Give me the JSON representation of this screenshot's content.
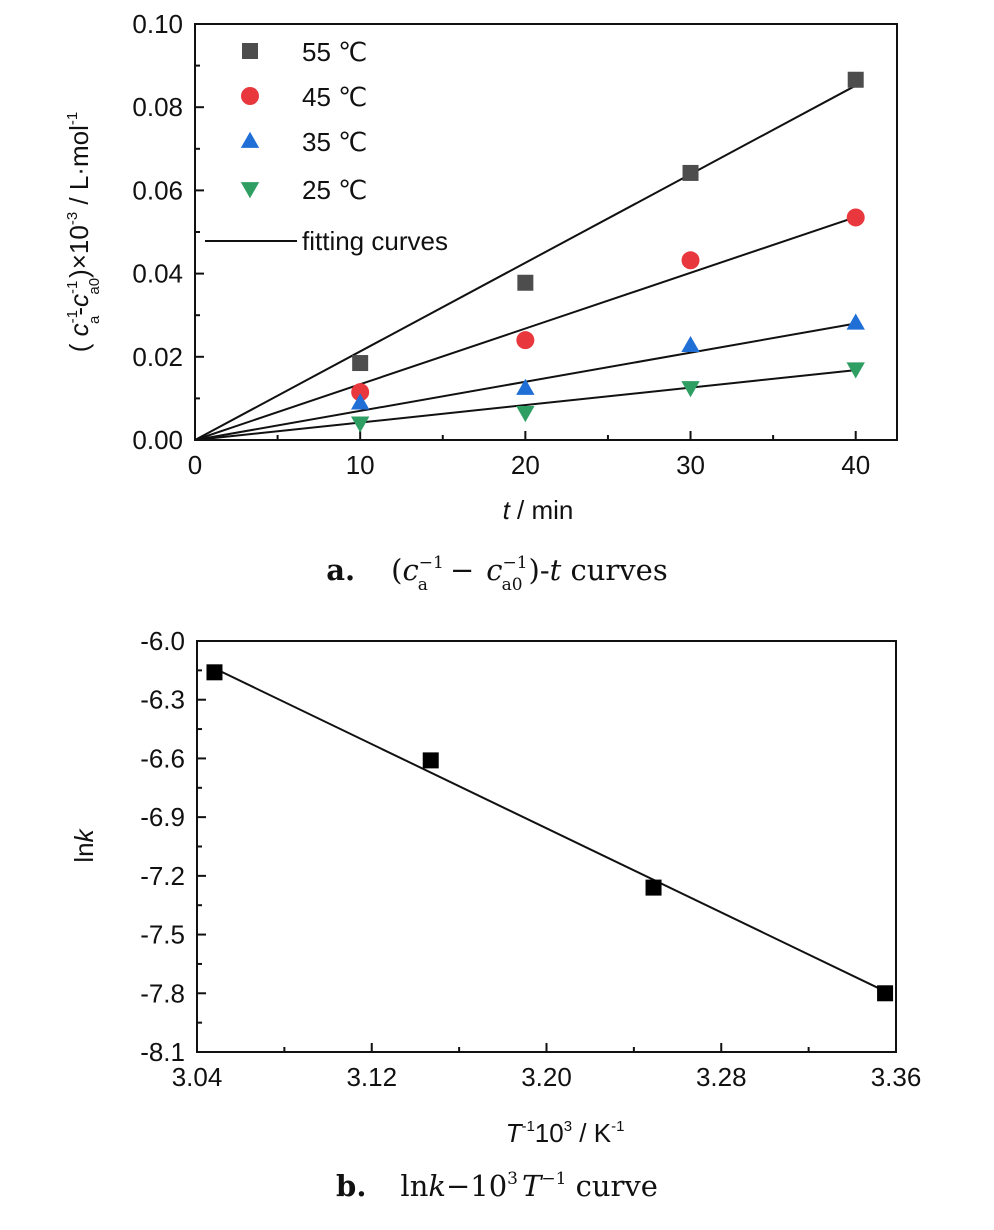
{
  "chart_data": [
    {
      "type": "scatter",
      "panel": "a",
      "caption": {
        "label": "a.",
        "text_open": "(",
        "c1": "c",
        "sub1": "a",
        "sup1": "−1",
        "minus": "−",
        "c2": "c",
        "sub2": "a0",
        "sup2": "−1",
        "text_close": ")-",
        "t": "t",
        "tail": " curves"
      },
      "xlabel": {
        "var": "t",
        "unit": " / min"
      },
      "ylabel": {
        "open": "( ",
        "c1": "c",
        "sub1": "a",
        "sup1": "-1",
        "dash": "-",
        "c2": "c",
        "sub2": "a0",
        "sup2": "-1",
        "mid": ")×10",
        "sup3": "-3",
        "unit": " / L·mol",
        "sup4": "-1"
      },
      "xlim": [
        0,
        42.5
      ],
      "ylim": [
        0,
        0.1
      ],
      "xticks": [
        0,
        10,
        20,
        30,
        40
      ],
      "xtick_labels": [
        "0",
        "10",
        "20",
        "30",
        "40"
      ],
      "yticks": [
        0,
        0.02,
        0.04,
        0.06,
        0.08,
        0.1
      ],
      "ytick_labels": [
        "0.00",
        "0.02",
        "0.04",
        "0.06",
        "0.08",
        "0.10"
      ],
      "legend_position": "top-left",
      "fit_label": "fitting curves",
      "series": [
        {
          "name": "55 ℃",
          "marker": "square",
          "color": "#4d4d4d",
          "x": [
            10,
            20,
            30,
            40
          ],
          "y": [
            0.0185,
            0.0378,
            0.0642,
            0.0866
          ],
          "fit_slope": 0.00213
        },
        {
          "name": "45 ℃",
          "marker": "circle",
          "color": "#e8383d",
          "x": [
            10,
            20,
            30,
            40
          ],
          "y": [
            0.0115,
            0.024,
            0.0432,
            0.0535
          ],
          "fit_slope": 0.00134
        },
        {
          "name": "35 ℃",
          "marker": "triangle-up",
          "color": "#1f6fd6",
          "x": [
            10,
            20,
            30,
            40
          ],
          "y": [
            0.009,
            0.0125,
            0.0228,
            0.0282
          ],
          "fit_slope": 0.0007
        },
        {
          "name": "25 ℃",
          "marker": "triangle-down",
          "color": "#2e9e63",
          "x": [
            10,
            20,
            30,
            40
          ],
          "y": [
            0.004,
            0.0065,
            0.0125,
            0.017
          ],
          "fit_slope": 0.00042
        }
      ]
    },
    {
      "type": "scatter",
      "panel": "b",
      "caption": {
        "label": "b.",
        "ln": "ln",
        "k": "k",
        "ten": "−10",
        "sup": "3",
        "T": "T",
        "sup2": "−1",
        "tail": " curve"
      },
      "xlabel": {
        "T": "T",
        "sup1": "-1",
        "ten": "10",
        "sup2": "3",
        "unit": " / K",
        "sup3": "-1"
      },
      "ylabel": {
        "ln": "ln",
        "k": "k"
      },
      "xlim": [
        3.04,
        3.36
      ],
      "ylim": [
        -8.1,
        -6.0
      ],
      "xticks": [
        3.04,
        3.12,
        3.2,
        3.28,
        3.36
      ],
      "xtick_labels": [
        "3.04",
        "3.12",
        "3.20",
        "3.28",
        "3.36"
      ],
      "yticks": [
        -6.0,
        -6.3,
        -6.6,
        -6.9,
        -7.2,
        -7.5,
        -7.8,
        -8.1
      ],
      "ytick_labels": [
        "-6.0",
        "-6.3",
        "-6.6",
        "-6.9",
        "-7.2",
        "-7.5",
        "-7.8",
        "-8.1"
      ],
      "series": [
        {
          "marker": "square",
          "color": "#000000",
          "x": [
            3.048,
            3.147,
            3.249,
            3.355
          ],
          "y": [
            -6.16,
            -6.61,
            -7.26,
            -7.8
          ]
        }
      ],
      "fit_line": {
        "x": [
          3.048,
          3.355
        ],
        "y": [
          -6.14,
          -7.79
        ]
      }
    }
  ]
}
